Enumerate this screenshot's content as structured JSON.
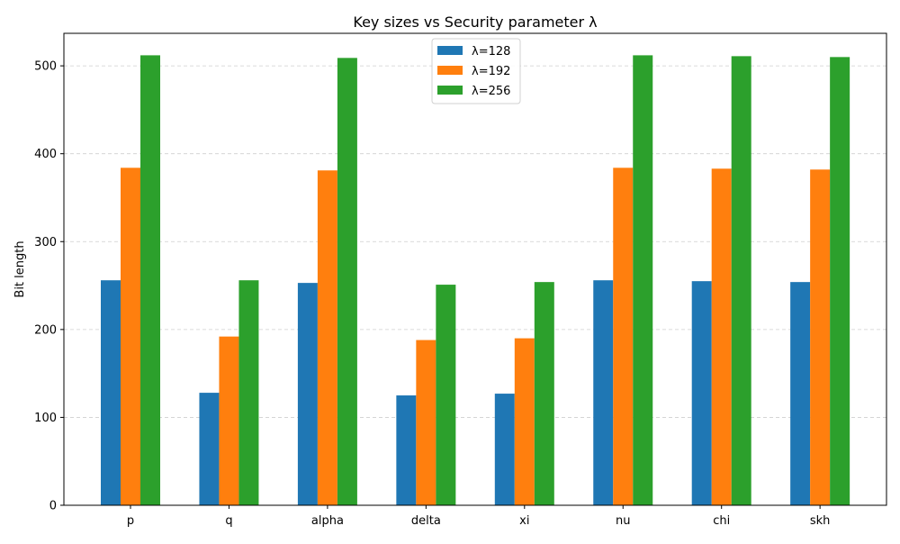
{
  "chart_data": {
    "type": "bar",
    "title": "Key sizes vs Security parameter λ",
    "xlabel": "",
    "ylabel": "Bit length",
    "categories": [
      "p",
      "q",
      "alpha",
      "delta",
      "xi",
      "nu",
      "chi",
      "skh"
    ],
    "series": [
      {
        "name": "λ=128",
        "color": "#1f77b4",
        "values": [
          256,
          128,
          253,
          125,
          127,
          256,
          255,
          254
        ]
      },
      {
        "name": "λ=192",
        "color": "#ff7f0e",
        "values": [
          384,
          192,
          381,
          188,
          190,
          384,
          383,
          382
        ]
      },
      {
        "name": "λ=256",
        "color": "#2ca02c",
        "values": [
          512,
          256,
          509,
          251,
          254,
          512,
          511,
          510
        ]
      }
    ],
    "ylim": [
      0,
      537
    ],
    "yticks": [
      0,
      100,
      200,
      300,
      400,
      500
    ],
    "grid": true,
    "legend_position": "top-center"
  }
}
